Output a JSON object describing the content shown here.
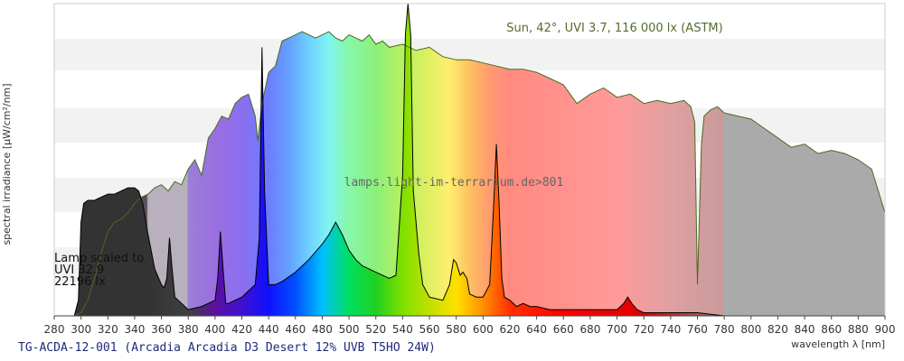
{
  "chart_data": {
    "type": "area",
    "title": "",
    "xlabel": "wavelength λ [nm]",
    "ylabel": "spectral irradiance [µW/cm²/nm]",
    "xlim": [
      280,
      900
    ],
    "x_ticks": [
      280,
      300,
      320,
      340,
      360,
      380,
      400,
      420,
      440,
      460,
      480,
      500,
      520,
      540,
      560,
      580,
      600,
      620,
      640,
      660,
      680,
      700,
      720,
      740,
      760,
      780,
      800,
      820,
      840,
      860,
      880,
      900
    ],
    "y_scale_shown": false,
    "grid": "horizontal bands",
    "annotations": {
      "sun": "Sun, 42°, UVI 3.7, 116 000 lx (ASTM)",
      "watermark": "lamps.light-im-terrarium.de>801",
      "lamp_lines": [
        "Lamp scaled to",
        "UVI 32.9",
        "22196 lx"
      ],
      "footer": "TG-ACDA-12-001 (Arcadia Arcadia D3 Desert 12% UVB T5HO 24W)"
    },
    "series": [
      {
        "name": "Sun, 42°, UVI 3.7, 116 000 lx (ASTM)",
        "unit": "relative (0-1 of plot height)",
        "x": [
          280,
          295,
          300,
          305,
          310,
          315,
          320,
          325,
          330,
          335,
          340,
          345,
          350,
          355,
          360,
          365,
          370,
          375,
          380,
          385,
          390,
          395,
          400,
          405,
          410,
          415,
          420,
          425,
          430,
          432,
          435,
          440,
          445,
          450,
          455,
          460,
          465,
          470,
          475,
          480,
          485,
          490,
          495,
          500,
          505,
          510,
          515,
          520,
          525,
          530,
          540,
          550,
          560,
          570,
          580,
          590,
          600,
          610,
          620,
          630,
          640,
          650,
          660,
          670,
          680,
          690,
          700,
          710,
          720,
          730,
          740,
          750,
          755,
          758,
          760,
          763,
          765,
          770,
          775,
          780,
          790,
          800,
          810,
          820,
          830,
          840,
          850,
          860,
          870,
          880,
          890,
          895,
          900
        ],
        "y": [
          0,
          0,
          0.01,
          0.05,
          0.12,
          0.2,
          0.27,
          0.3,
          0.31,
          0.33,
          0.36,
          0.38,
          0.39,
          0.41,
          0.42,
          0.4,
          0.43,
          0.42,
          0.47,
          0.5,
          0.45,
          0.57,
          0.6,
          0.64,
          0.63,
          0.68,
          0.7,
          0.71,
          0.64,
          0.56,
          0.68,
          0.78,
          0.8,
          0.88,
          0.89,
          0.9,
          0.91,
          0.9,
          0.89,
          0.9,
          0.91,
          0.89,
          0.88,
          0.9,
          0.89,
          0.88,
          0.9,
          0.87,
          0.88,
          0.86,
          0.87,
          0.85,
          0.86,
          0.83,
          0.82,
          0.82,
          0.81,
          0.8,
          0.79,
          0.79,
          0.78,
          0.76,
          0.74,
          0.68,
          0.71,
          0.73,
          0.7,
          0.71,
          0.68,
          0.69,
          0.68,
          0.69,
          0.67,
          0.62,
          0.1,
          0.55,
          0.64,
          0.66,
          0.67,
          0.65,
          0.64,
          0.63,
          0.6,
          0.57,
          0.54,
          0.55,
          0.52,
          0.53,
          0.52,
          0.5,
          0.47,
          0.4,
          0.33
        ]
      },
      {
        "name": "Lamp scaled to UVI 32.9, 22196 lx",
        "unit": "relative (0-1 of plot height)",
        "x": [
          280,
          290,
          295,
          298,
          300,
          302,
          305,
          310,
          315,
          320,
          325,
          330,
          335,
          340,
          343,
          346,
          350,
          355,
          360,
          362,
          364,
          366,
          368,
          370,
          380,
          390,
          400,
          402,
          404,
          406,
          408,
          410,
          420,
          425,
          430,
          433,
          435,
          437,
          440,
          445,
          450,
          460,
          470,
          480,
          485,
          490,
          495,
          500,
          505,
          510,
          520,
          530,
          535,
          540,
          542,
          544,
          546,
          548,
          552,
          555,
          560,
          570,
          575,
          578,
          580,
          583,
          585,
          588,
          590,
          595,
          600,
          605,
          608,
          610,
          612,
          614,
          616,
          620,
          625,
          630,
          635,
          640,
          650,
          660,
          670,
          680,
          690,
          700,
          705,
          708,
          711,
          715,
          720,
          730,
          740,
          750,
          760,
          780,
          800,
          820,
          840,
          860,
          880,
          900
        ],
        "y": [
          0,
          0,
          0,
          0.05,
          0.3,
          0.36,
          0.37,
          0.37,
          0.38,
          0.39,
          0.39,
          0.4,
          0.41,
          0.41,
          0.4,
          0.36,
          0.26,
          0.15,
          0.1,
          0.09,
          0.12,
          0.25,
          0.15,
          0.06,
          0.02,
          0.03,
          0.05,
          0.12,
          0.27,
          0.15,
          0.04,
          0.04,
          0.06,
          0.08,
          0.1,
          0.25,
          0.86,
          0.4,
          0.1,
          0.1,
          0.11,
          0.14,
          0.18,
          0.23,
          0.26,
          0.3,
          0.26,
          0.21,
          0.18,
          0.16,
          0.14,
          0.12,
          0.13,
          0.45,
          0.9,
          1,
          0.9,
          0.4,
          0.2,
          0.1,
          0.06,
          0.05,
          0.1,
          0.18,
          0.17,
          0.13,
          0.14,
          0.12,
          0.07,
          0.06,
          0.06,
          0.1,
          0.36,
          0.55,
          0.36,
          0.12,
          0.06,
          0.05,
          0.03,
          0.04,
          0.03,
          0.03,
          0.02,
          0.02,
          0.02,
          0.02,
          0.02,
          0.02,
          0.04,
          0.06,
          0.04,
          0.02,
          0.01,
          0.01,
          0.01,
          0.01,
          0.01,
          0,
          0,
          0,
          0,
          0,
          0,
          0
        ]
      }
    ]
  },
  "colors": {
    "sun_outline": "#4a6a20",
    "lamp_outline": "#000000",
    "band": "#f2f2f2",
    "footer_text": "#1f2a7a",
    "sun_label": "#556b2f",
    "uv_dark": "#2a2a2a"
  }
}
